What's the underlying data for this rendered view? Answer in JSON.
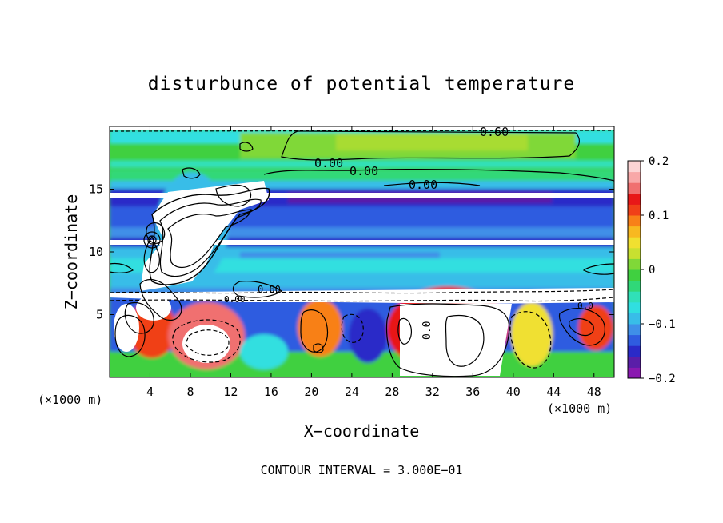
{
  "chart_data": {
    "type": "heatmap",
    "title": "disturbunce of potential temperature",
    "xlabel": "X−coordinate",
    "ylabel": "Z−coordinate",
    "x_unit": "(×1000 m)",
    "x_unit_right": "(×1000 m)",
    "xlim": [
      0,
      50
    ],
    "ylim": [
      0,
      20
    ],
    "x_ticks": [
      4,
      8,
      12,
      16,
      20,
      24,
      28,
      32,
      36,
      40,
      44,
      48
    ],
    "y_ticks": [
      5,
      10,
      15
    ],
    "colorbar": {
      "ticks": [
        0.2,
        0.1,
        0,
        -0.1,
        -0.2
      ],
      "tick_labels": [
        "0.2",
        "0.1",
        "0",
        "−0.1",
        "−0.2"
      ],
      "colors": [
        "#8a19b0",
        "#5a1ea8",
        "#2a2ac8",
        "#2f5ce0",
        "#3f8fe8",
        "#38bde8",
        "#30dfe0",
        "#30e0b8",
        "#30d878",
        "#40d040",
        "#80d838",
        "#c8e030",
        "#f0e030",
        "#f8b820",
        "#f88018",
        "#f04018",
        "#e81818",
        "#f07070",
        "#f8a8a8",
        "#fcd4d4"
      ]
    },
    "contour_labels": [
      "0.00",
      "0.00",
      "0.00",
      "0.00",
      "0.60",
      "0.0",
      "0.00",
      "0.0"
    ],
    "grid": false,
    "legend": "colorbar-right"
  },
  "footer": "CONTOUR INTERVAL = 3.000E−01"
}
